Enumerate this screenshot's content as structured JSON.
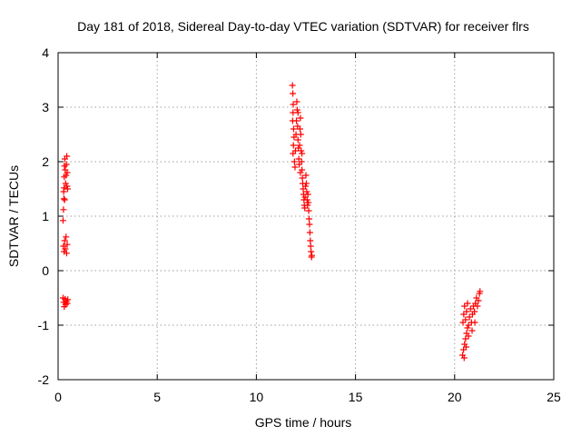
{
  "chart_data": {
    "type": "scatter",
    "title": "Day 181 of 2018, Sidereal Day-to-day VTEC variation (SDTVAR) for receiver flrs",
    "xlabel": "GPS time / hours",
    "ylabel": "SDTVAR / TECUs",
    "xlim": [
      0,
      25
    ],
    "ylim": [
      -2,
      4
    ],
    "xticks": [
      0,
      5,
      10,
      15,
      20,
      25
    ],
    "yticks": [
      -2,
      -1,
      0,
      1,
      2,
      3,
      4
    ],
    "grid": true,
    "marker": "+",
    "series": [
      {
        "name": "flrs",
        "color": "#ff0000",
        "points": [
          [
            0.25,
            0.92
          ],
          [
            0.27,
            1.12
          ],
          [
            0.29,
            1.32
          ],
          [
            0.3,
            1.52
          ],
          [
            0.31,
            1.72
          ],
          [
            0.32,
            1.92
          ],
          [
            0.34,
            2.05
          ],
          [
            0.36,
            1.85
          ],
          [
            0.38,
            1.6
          ],
          [
            0.4,
            1.75
          ],
          [
            0.42,
            1.95
          ],
          [
            0.44,
            2.1
          ],
          [
            0.46,
            1.8
          ],
          [
            0.48,
            1.5
          ],
          [
            0.28,
            1.45
          ],
          [
            0.33,
            1.3
          ],
          [
            0.45,
            1.55
          ],
          [
            0.27,
            0.45
          ],
          [
            0.3,
            0.35
          ],
          [
            0.33,
            0.55
          ],
          [
            0.36,
            0.4
          ],
          [
            0.4,
            0.62
          ],
          [
            0.43,
            0.32
          ],
          [
            0.46,
            0.48
          ],
          [
            0.25,
            -0.5
          ],
          [
            0.28,
            -0.58
          ],
          [
            0.31,
            -0.66
          ],
          [
            0.35,
            -0.52
          ],
          [
            0.38,
            -0.62
          ],
          [
            0.42,
            -0.56
          ],
          [
            0.46,
            -0.6
          ],
          [
            0.49,
            -0.53
          ],
          [
            11.82,
            3.4
          ],
          [
            11.84,
            3.25
          ],
          [
            11.86,
            3.05
          ],
          [
            11.85,
            2.9
          ],
          [
            11.83,
            2.75
          ],
          [
            11.88,
            2.6
          ],
          [
            11.9,
            2.45
          ],
          [
            11.87,
            2.3
          ],
          [
            11.85,
            2.15
          ],
          [
            11.92,
            2.0
          ],
          [
            11.95,
            1.9
          ],
          [
            11.97,
            2.2
          ],
          [
            12.0,
            2.5
          ],
          [
            12.02,
            2.75
          ],
          [
            12.04,
            3.1
          ],
          [
            12.06,
            2.95
          ],
          [
            12.08,
            2.65
          ],
          [
            12.1,
            2.4
          ],
          [
            12.12,
            2.25
          ],
          [
            12.14,
            2.05
          ],
          [
            12.16,
            1.95
          ],
          [
            12.18,
            2.3
          ],
          [
            12.2,
            2.6
          ],
          [
            12.22,
            2.8
          ],
          [
            12.24,
            2.5
          ],
          [
            12.26,
            2.2
          ],
          [
            12.28,
            2.0
          ],
          [
            12.3,
            1.85
          ],
          [
            12.32,
            1.7
          ],
          [
            12.34,
            1.6
          ],
          [
            12.36,
            1.5
          ],
          [
            12.38,
            1.4
          ],
          [
            12.4,
            1.3
          ],
          [
            12.42,
            1.2
          ],
          [
            12.44,
            1.15
          ],
          [
            12.46,
            1.35
          ],
          [
            12.48,
            1.55
          ],
          [
            12.5,
            1.75
          ],
          [
            12.52,
            1.6
          ],
          [
            12.54,
            1.45
          ],
          [
            12.56,
            1.3
          ],
          [
            12.58,
            1.2
          ],
          [
            12.6,
            1.4
          ],
          [
            12.62,
            1.25
          ],
          [
            12.64,
            1.1
          ],
          [
            12.66,
            0.95
          ],
          [
            12.68,
            0.85
          ],
          [
            12.7,
            0.7
          ],
          [
            12.72,
            0.55
          ],
          [
            12.74,
            0.45
          ],
          [
            12.76,
            0.35
          ],
          [
            12.78,
            0.25
          ],
          [
            12.8,
            0.28
          ],
          [
            12.22,
            1.8
          ],
          [
            12.3,
            2.15
          ],
          [
            12.1,
            2.9
          ],
          [
            20.4,
            -1.55
          ],
          [
            20.45,
            -1.45
          ],
          [
            20.5,
            -1.35
          ],
          [
            20.55,
            -1.25
          ],
          [
            20.6,
            -1.15
          ],
          [
            20.65,
            -1.05
          ],
          [
            20.42,
            -0.95
          ],
          [
            20.46,
            -0.8
          ],
          [
            20.5,
            -0.65
          ],
          [
            20.55,
            -0.9
          ],
          [
            20.6,
            -0.75
          ],
          [
            20.65,
            -0.6
          ],
          [
            20.7,
            -1.0
          ],
          [
            20.75,
            -0.85
          ],
          [
            20.8,
            -0.7
          ],
          [
            20.85,
            -0.95
          ],
          [
            20.9,
            -0.8
          ],
          [
            20.95,
            -0.65
          ],
          [
            21.0,
            -0.75
          ],
          [
            21.05,
            -0.6
          ],
          [
            21.1,
            -0.5
          ],
          [
            21.15,
            -0.65
          ],
          [
            21.2,
            -0.55
          ],
          [
            21.25,
            -0.42
          ],
          [
            21.28,
            -0.38
          ],
          [
            20.7,
            -1.2
          ],
          [
            20.58,
            -1.4
          ],
          [
            20.88,
            -1.1
          ],
          [
            21.02,
            -0.95
          ],
          [
            20.48,
            -1.6
          ]
        ]
      }
    ]
  }
}
